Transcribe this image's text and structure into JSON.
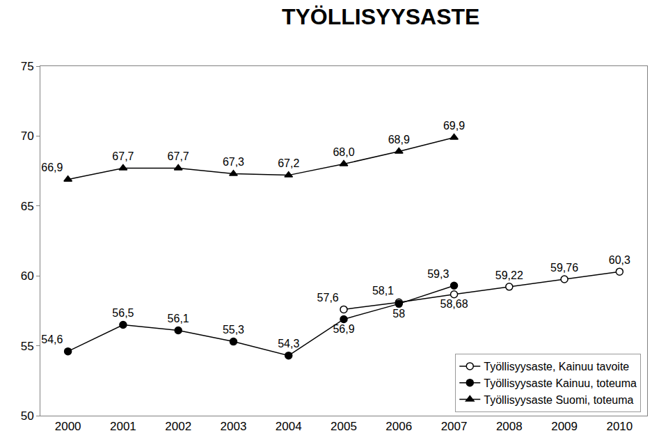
{
  "chart_data": {
    "type": "line",
    "title": "TYÖLLISYYSASTE",
    "categories": [
      "2000",
      "2001",
      "2002",
      "2003",
      "2004",
      "2005",
      "2006",
      "2007",
      "2008",
      "2009",
      "2010"
    ],
    "series": [
      {
        "name": "Työllisyysaste, Kainuu tavoite",
        "color": "#000000",
        "marker": "circle-open",
        "line_style": "solid",
        "values": [
          null,
          null,
          null,
          null,
          null,
          57.6,
          58.1,
          58.68,
          59.22,
          59.76,
          60.3
        ],
        "value_labels": [
          null,
          null,
          null,
          null,
          null,
          "57,6",
          "58,1",
          "58,68",
          "59,22",
          "59,76",
          "60,3"
        ]
      },
      {
        "name": "Työllisyysaste Kainuu, toteuma",
        "color": "#000000",
        "marker": "circle",
        "line_style": "solid",
        "values": [
          54.6,
          56.5,
          56.1,
          55.3,
          54.3,
          56.9,
          58,
          59.3,
          null,
          null,
          null
        ],
        "value_labels": [
          "54,6",
          "56,5",
          "56,1",
          "55,3",
          "54,3",
          "56,9",
          "58",
          "59,3",
          null,
          null,
          null
        ]
      },
      {
        "name": "Työllisyysaste Suomi, toteuma",
        "color": "#000000",
        "marker": "triangle-up",
        "line_style": "solid",
        "values": [
          66.9,
          67.7,
          67.7,
          67.3,
          67.2,
          68.0,
          68.9,
          69.9,
          null,
          null,
          null
        ],
        "value_labels": [
          "66,9",
          "67,7",
          "67,7",
          "67,3",
          "67,2",
          "68,0",
          "68,9",
          "69,9",
          null,
          null,
          null
        ]
      }
    ],
    "ylim": [
      50,
      75
    ],
    "yticks": [
      50,
      55,
      60,
      65,
      70,
      75
    ],
    "grid": false,
    "legend": "lower right",
    "data_labels": true
  }
}
